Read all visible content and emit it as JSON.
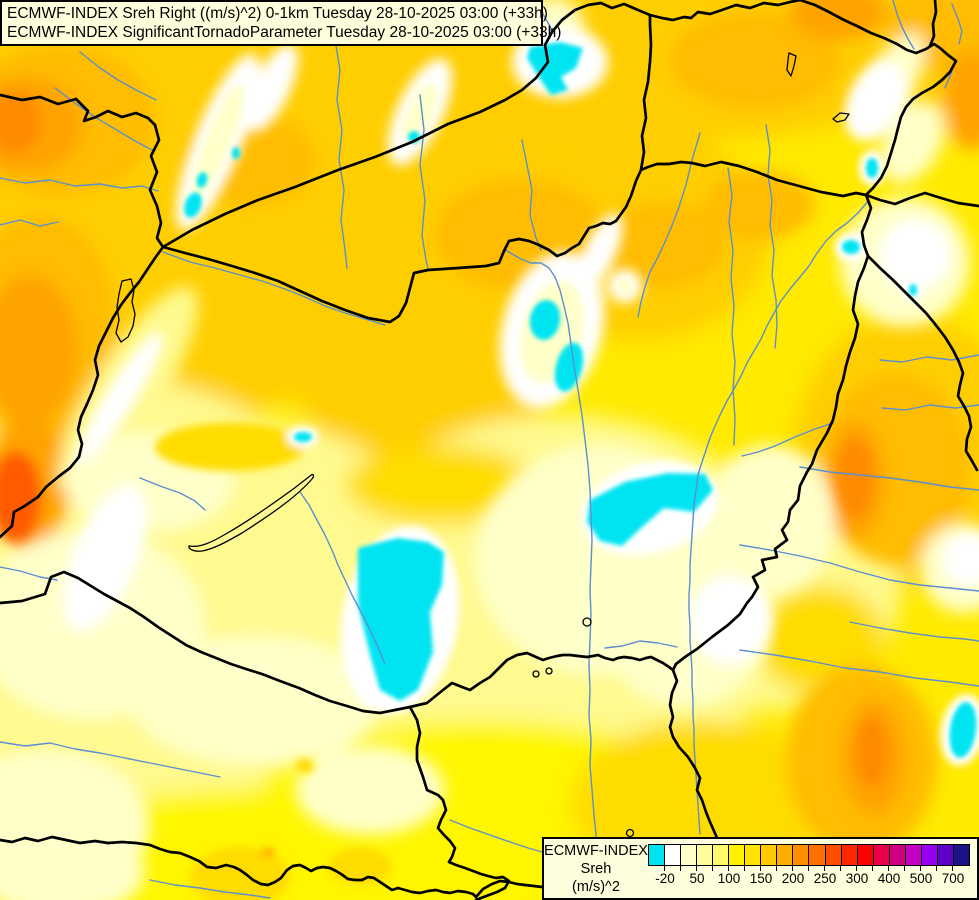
{
  "title_box": {
    "line1": "ECMWF-INDEX Sreh Right ((m/s)^2) 0-1km Tuesday 28-10-2025 03:00 (+33h)",
    "line2": "ECMWF-INDEX SignificantTornadoParameter Tuesday 28-10-2025 03:00 (+33h)"
  },
  "legend": {
    "title": "ECMWF-INDEX",
    "parameter": "Sreh",
    "units": "(m/s)^2",
    "tick_labels": [
      "-20",
      "50",
      "100",
      "150",
      "200",
      "250",
      "300",
      "400",
      "500",
      "700"
    ],
    "colors": [
      "#00E4F2",
      "#FFFFFF",
      "#FFFFC8",
      "#FFFC9B",
      "#FFF96B",
      "#FFF200",
      "#FFE200",
      "#FFC900",
      "#FFAD00",
      "#FF8F00",
      "#FF6F00",
      "#FF4E00",
      "#FF2800",
      "#FF0000",
      "#E8004A",
      "#CE0080",
      "#C400C4",
      "#9800F0",
      "#5F00C8",
      "#1D1286"
    ]
  },
  "map": {
    "description": "Filled contour field of storm-relative helicity over Hungary and neighbouring countries with national borders, rivers and lakes",
    "colors": {
      "base": "#FFEA00",
      "gold": "#FFCE00",
      "gold_light": "#FFDC00",
      "amber": "#FFBC00",
      "orange": "#FFA300",
      "deep_orange": "#FF8A00",
      "red_orange": "#FF5A00",
      "bright_yellow": "#FFF600",
      "pale": "#FFFA8F",
      "cream": "#FFFFC9",
      "white": "#FFFFFF",
      "cyan": "#00E4F2",
      "border": "#000000",
      "river": "#5B8FD0",
      "lake": "#000000"
    }
  },
  "chart_data": {
    "type": "heatmap",
    "title": "ECMWF-INDEX Sreh Right ((m/s)^2) 0-1km",
    "subtitle": "ECMWF-INDEX SignificantTornadoParameter",
    "valid_time": "Tuesday 28-10-2025 03:00 (+33h)",
    "parameter": "Sreh",
    "units": "(m/s)^2",
    "scale_breakpoints": [
      -20,
      50,
      100,
      150,
      200,
      250,
      300,
      400,
      500,
      700
    ],
    "legend_position": "bottom-right"
  }
}
